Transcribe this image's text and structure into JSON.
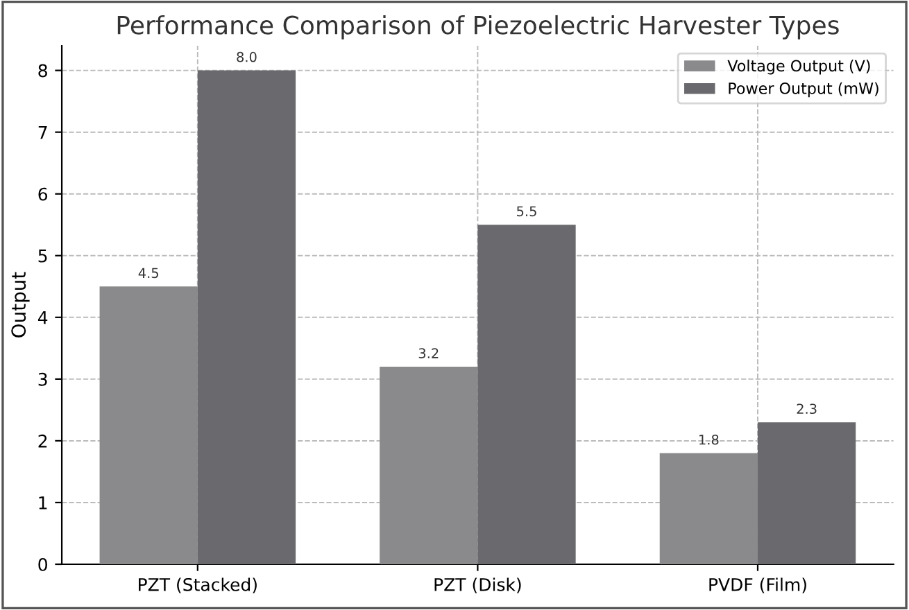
{
  "chart_data": {
    "type": "bar",
    "title": "Performance Comparison of Piezoelectric Harvester Types",
    "ylabel": "Output",
    "categories": [
      "PZT (Stacked)",
      "PZT (Disk)",
      "PVDF (Film)"
    ],
    "series": [
      {
        "name": "Voltage Output (V)",
        "color": "#8a8a8c",
        "values": [
          4.5,
          3.2,
          1.8
        ],
        "value_labels": [
          "4.5",
          "3.2",
          "1.8"
        ]
      },
      {
        "name": "Power Output (mW)",
        "color": "#6a6a6e",
        "values": [
          8.0,
          5.5,
          2.3
        ],
        "value_labels": [
          "8.0",
          "5.5",
          "2.3"
        ]
      }
    ],
    "ylim": [
      0,
      8.4
    ],
    "yticks": [
      0,
      1,
      2,
      3,
      4,
      5,
      6,
      7,
      8
    ],
    "grid": true,
    "legend": "top right"
  }
}
